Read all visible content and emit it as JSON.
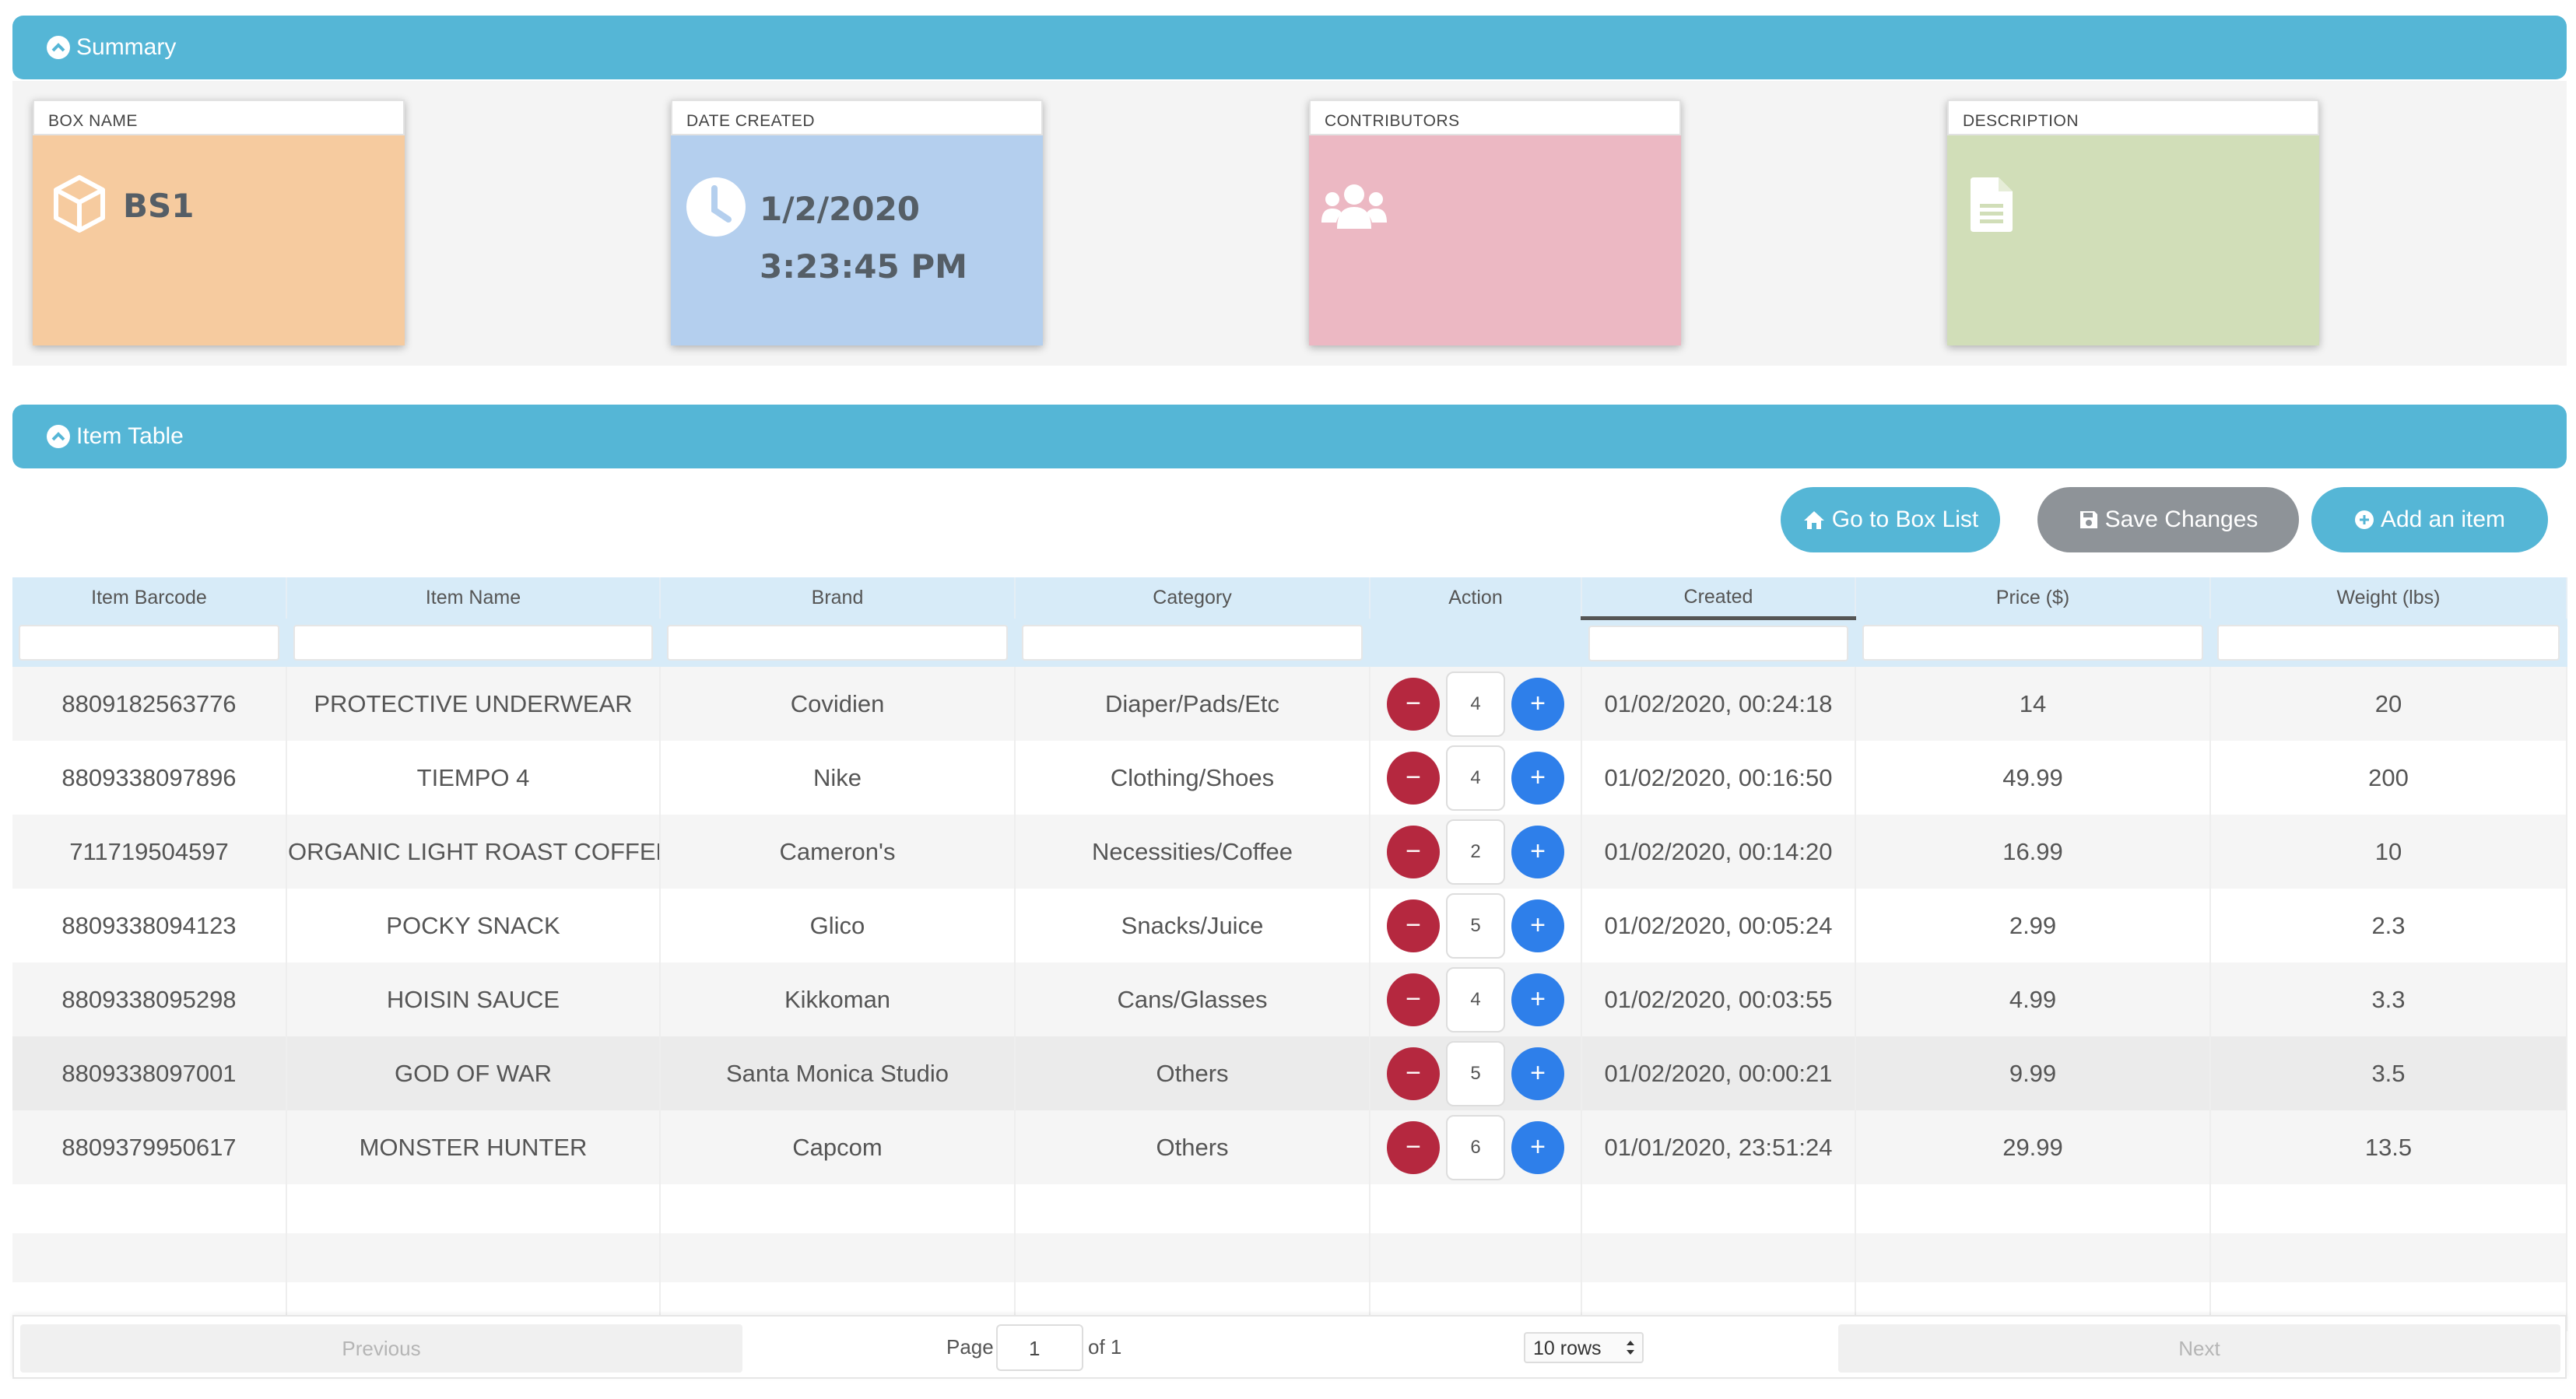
{
  "summary": {
    "title": "Summary",
    "cards": [
      {
        "label": "BOX NAME",
        "value": "BS1",
        "icon": "cube-icon",
        "color": "#f6cb9f"
      },
      {
        "label": "DATE CREATED",
        "value": "1/2/2020",
        "value2": "3:23:45 PM",
        "icon": "clock-icon",
        "color": "#b4cfee"
      },
      {
        "label": "CONTRIBUTORS",
        "value": "",
        "icon": "users-icon",
        "color": "#ecb8c3"
      },
      {
        "label": "DESCRIPTION",
        "value": "",
        "icon": "document-icon",
        "color": "#d1deb8"
      }
    ]
  },
  "item_table": {
    "title": "Item Table",
    "buttons": {
      "go_to_box_list": "Go to Box List",
      "save_changes": "Save Changes",
      "add_item": "Add an item"
    },
    "columns": [
      "Item Barcode",
      "Item Name",
      "Brand",
      "Category",
      "Action",
      "Created",
      "Price ($)",
      "Weight (lbs)"
    ],
    "rows": [
      {
        "barcode": "8809182563776",
        "name": "PROTECTIVE UNDERWEAR",
        "brand": "Covidien",
        "category": "Diaper/Pads/Etc",
        "qty": "4",
        "created": "01/02/2020, 00:24:18",
        "price": "14",
        "weight": "20"
      },
      {
        "barcode": "8809338097896",
        "name": "TIEMPO 4",
        "brand": "Nike",
        "category": "Clothing/Shoes",
        "qty": "4",
        "created": "01/02/2020, 00:16:50",
        "price": "49.99",
        "weight": "200"
      },
      {
        "barcode": "711719504597",
        "name": "ORGANIC LIGHT ROAST COFFEE",
        "brand": "Cameron's",
        "category": "Necessities/Coffee",
        "qty": "2",
        "created": "01/02/2020, 00:14:20",
        "price": "16.99",
        "weight": "10"
      },
      {
        "barcode": "8809338094123",
        "name": "POCKY SNACK",
        "brand": "Glico",
        "category": "Snacks/Juice",
        "qty": "5",
        "created": "01/02/2020, 00:05:24",
        "price": "2.99",
        "weight": "2.3"
      },
      {
        "barcode": "8809338095298",
        "name": "HOISIN SAUCE",
        "brand": "Kikkoman",
        "category": "Cans/Glasses",
        "qty": "4",
        "created": "01/02/2020, 00:03:55",
        "price": "4.99",
        "weight": "3.3"
      },
      {
        "barcode": "8809338097001",
        "name": "GOD OF WAR",
        "brand": "Santa Monica Studio",
        "category": "Others",
        "qty": "5",
        "created": "01/02/2020, 00:00:21",
        "price": "9.99",
        "weight": "3.5"
      },
      {
        "barcode": "8809379950617",
        "name": "MONSTER HUNTER",
        "brand": "Capcom",
        "category": "Others",
        "qty": "6",
        "created": "01/01/2020, 23:51:24",
        "price": "29.99",
        "weight": "13.5"
      }
    ],
    "pagination": {
      "previous": "Previous",
      "page_label": "Page",
      "page": "1",
      "of_label": "of 1",
      "rows_option": "10 rows",
      "next": "Next"
    }
  },
  "colors": {
    "header": "#55b6d6",
    "minus": "#b5283f",
    "plus": "#2e7fea",
    "save_button": "#8e9398",
    "table_head": "#d7ebf8"
  }
}
